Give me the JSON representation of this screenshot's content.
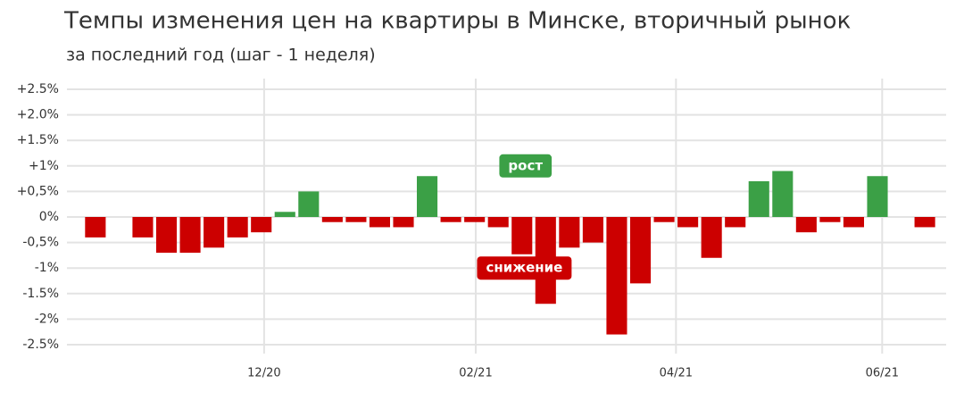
{
  "chart_data": {
    "type": "bar",
    "title": "Темпы изменения цен на квартиры в Минске, вторичный рынок",
    "subtitle": "за последний год (шаг - 1 неделя)",
    "x": [
      0,
      1,
      2,
      3,
      4,
      5,
      6,
      7,
      8,
      9,
      10,
      11,
      12,
      13,
      14,
      15,
      16,
      17,
      18,
      19,
      20,
      21,
      22,
      23,
      24,
      25,
      26,
      27,
      28,
      29,
      30,
      31,
      32,
      33,
      34,
      35
    ],
    "values": [
      -0.4,
      null,
      -0.4,
      -0.7,
      -0.7,
      -0.6,
      -0.4,
      -0.3,
      0.1,
      0.5,
      -0.1,
      -0.1,
      -0.2,
      -0.2,
      0.8,
      -0.1,
      -0.1,
      -0.2,
      -0.73,
      -1.7,
      -0.6,
      -0.5,
      -2.3,
      -1.3,
      -0.1,
      -0.2,
      -0.8,
      -0.2,
      0.7,
      0.9,
      -0.3,
      -0.1,
      -0.2,
      0.8,
      null,
      -0.2
    ],
    "positive_color": "#3ba046",
    "negative_color": "#cc0000",
    "xlim": [
      -1.2,
      35.9
    ],
    "xticks": [
      {
        "value": 7.12,
        "label": "12/20"
      },
      {
        "value": 16.05,
        "label": "02/21"
      },
      {
        "value": 24.5,
        "label": "04/21"
      },
      {
        "value": 33.2,
        "label": "06/21"
      }
    ],
    "ylim": [
      -2.5,
      2.5
    ],
    "yticks": [
      {
        "value": 2.5,
        "label": "+2.5%"
      },
      {
        "value": 2.0,
        "label": "+2.0%"
      },
      {
        "value": 1.5,
        "label": "+1.5%"
      },
      {
        "value": 1,
        "label": "+1%"
      },
      {
        "value": 0.5,
        "label": "+0,5%"
      },
      {
        "value": 0,
        "label": "0%"
      },
      {
        "value": -0.5,
        "label": "-0,5%"
      },
      {
        "value": -1,
        "label": "-1%"
      },
      {
        "value": -1.5,
        "label": "-1.5%"
      },
      {
        "value": -2,
        "label": "-2%"
      },
      {
        "value": -2.5,
        "label": "-2.5%"
      }
    ],
    "grid": true,
    "annotations": [
      {
        "text": "рост",
        "x": 18.15,
        "y": 1.0
      },
      {
        "text": "снижение",
        "x": 18.1,
        "y": -1.0
      }
    ]
  }
}
